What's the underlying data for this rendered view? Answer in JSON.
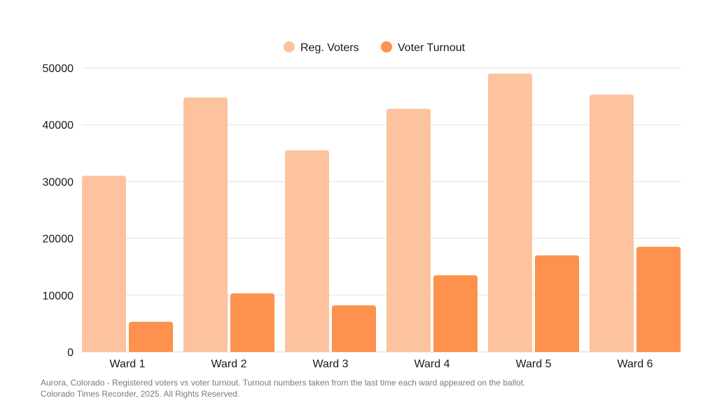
{
  "chart_data": {
    "type": "bar",
    "categories": [
      "Ward 1",
      "Ward 2",
      "Ward 3",
      "Ward 4",
      "Ward 5",
      "Ward 6"
    ],
    "series": [
      {
        "name": "Reg. Voters",
        "color": "#FDC29E",
        "values": [
          31000,
          44800,
          35500,
          42800,
          49000,
          45300
        ]
      },
      {
        "name": "Voter Turnout",
        "color": "#FD914D",
        "values": [
          5300,
          10300,
          8200,
          13500,
          17000,
          18500
        ]
      }
    ],
    "ylim": [
      0,
      50000
    ],
    "yticks": [
      0,
      10000,
      20000,
      30000,
      40000,
      50000
    ],
    "grid": true,
    "legend_position": "top-center",
    "title": "",
    "xlabel": "",
    "ylabel": ""
  },
  "footnote": {
    "line1": "Aurora, Colorado - Registered voters vs voter turnout. Turnout numbers taken from the last time each ward appeared on the ballot.",
    "line2": "Colorado Times Recorder, 2025. All Rights Reserved."
  }
}
